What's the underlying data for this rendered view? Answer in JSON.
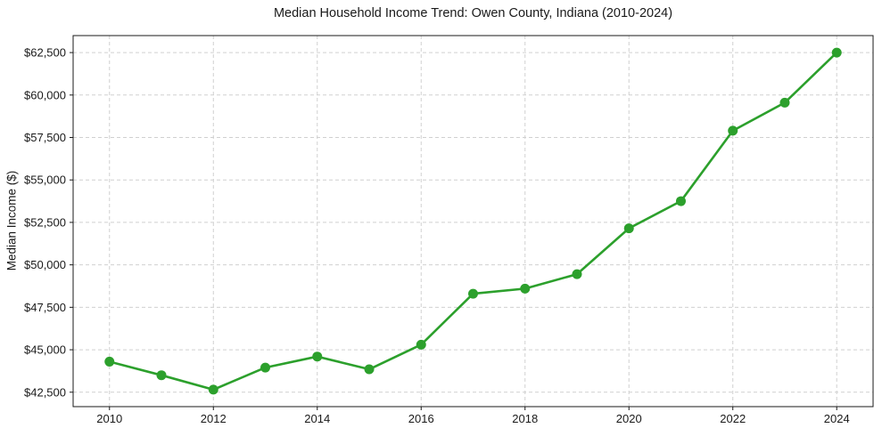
{
  "chart_data": {
    "type": "line",
    "title": "Median Household Income Trend: Owen County, Indiana (2010-2024)",
    "xlabel": "",
    "ylabel": "Median Income ($)",
    "series_name": "Median Household Income",
    "x": [
      2010,
      2011,
      2012,
      2013,
      2014,
      2015,
      2016,
      2017,
      2018,
      2019,
      2020,
      2021,
      2022,
      2023,
      2024
    ],
    "values": [
      44300,
      43500,
      42650,
      43950,
      44600,
      43850,
      45300,
      48300,
      48600,
      49450,
      52150,
      53750,
      57900,
      59550,
      62500
    ],
    "x_ticks": [
      2010,
      2012,
      2014,
      2016,
      2018,
      2020,
      2022,
      2024
    ],
    "x_tick_labels": [
      "2010",
      "2012",
      "2014",
      "2016",
      "2018",
      "2020",
      "2022",
      "2024"
    ],
    "y_ticks": [
      42500,
      45000,
      47500,
      50000,
      52500,
      55000,
      57500,
      60000,
      62500
    ],
    "y_tick_labels": [
      "$42,500",
      "$45,000",
      "$47,500",
      "$50,000",
      "$52,500",
      "$55,000",
      "$57,500",
      "$60,000",
      "$62,500"
    ],
    "xlim": [
      2009.3,
      2024.7
    ],
    "ylim": [
      41650,
      63500
    ],
    "grid": true,
    "grid_style": "dashed",
    "legend": false,
    "line_color": "#2ca02c",
    "grid_color": "#d0d0d0",
    "axis_color": "#1a1a1a",
    "marker": "circle"
  }
}
